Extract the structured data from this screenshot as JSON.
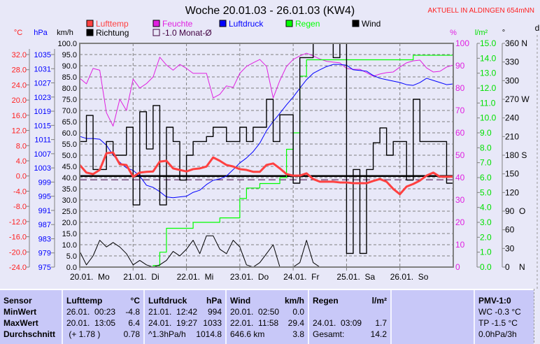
{
  "header": {
    "title": "Woche 20.01.03 - 26.01.03 (KW4)",
    "location": "AKTUELL IN ALDINGEN 654mNN"
  },
  "colors": {
    "lufttemp": "#ff4040",
    "feuchte": "#e020e0",
    "luftdruck": "#0000ff",
    "regen": "#00ff00",
    "wind": "#000000",
    "richtung": "#000000",
    "monat": "#400040",
    "grid": "#808080",
    "background": "#e8e8f8",
    "table": "#c8c8f8",
    "location": "#ff2020"
  },
  "chart_data": {
    "type": "line",
    "title": "Woche 20.01.03 - 26.01.03 (KW4)",
    "grid": true,
    "legend_placement": "top",
    "legend": [
      {
        "key": "lufttemp",
        "label": "Lufttemp"
      },
      {
        "key": "feuchte",
        "label": "Feuchte"
      },
      {
        "key": "luftdruck",
        "label": "Luftdruck"
      },
      {
        "key": "regen",
        "label": "Regen"
      },
      {
        "key": "wind",
        "label": "Wind"
      },
      {
        "key": "richtung",
        "label": "Richtung"
      },
      {
        "key": "monat",
        "label": "-1.0 Monat-Ø"
      }
    ],
    "axes": {
      "temp": {
        "unit": "°C",
        "ticks": [
          "32.0",
          "28.0",
          "24.0",
          "20.0",
          "16.0",
          "12.0",
          "8.0",
          "4.0",
          "0.0",
          "-4.0",
          "-8.0",
          "-12.0",
          "-16.0",
          "-20.0",
          "-24.0"
        ],
        "range": [
          -24,
          32
        ]
      },
      "pressure": {
        "unit": "hPa",
        "ticks": [
          "1035",
          "1031",
          "1027",
          "1023",
          "1019",
          "1015",
          "1011",
          "1007",
          "1003",
          "999",
          "995",
          "991",
          "987",
          "983",
          "979",
          "975"
        ],
        "range": [
          975,
          1035
        ]
      },
      "wind": {
        "unit": "km/h",
        "ticks": [
          "100.0",
          "95.0",
          "90.0",
          "85.0",
          "80.0",
          "75.0",
          "70.0",
          "65.0",
          "60.0",
          "55.0",
          "50.0",
          "45.0",
          "40.0",
          "35.0",
          "30.0",
          "25.0",
          "20.0",
          "15.0",
          "10.0",
          "5.0",
          "0.0"
        ],
        "range": [
          0,
          100
        ]
      },
      "humidity": {
        "unit": "%",
        "ticks": [
          "100",
          "90",
          "80",
          "70",
          "60",
          "50",
          "40",
          "30",
          "20",
          "10",
          "0"
        ],
        "range": [
          0,
          100
        ]
      },
      "rain": {
        "unit": "l/m²",
        "ticks": [
          "15.0",
          "14.0",
          "13.0",
          "12.0",
          "11.0",
          "10.0",
          "9.0",
          "8.0",
          "7.0",
          "6.0",
          "5.0",
          "4.0",
          "3.0",
          "2.0",
          "1.0",
          "0.0"
        ],
        "range": [
          0,
          15
        ]
      },
      "direction": {
        "unit": "°",
        "ticks": [
          "360 N",
          "330",
          "300",
          "270 W",
          "240",
          "210",
          "180 S",
          "150",
          "120",
          "90  O",
          "60",
          "30",
          "0    N"
        ],
        "range": [
          0,
          360
        ]
      },
      "extra": {
        "unit": "d"
      }
    },
    "days": [
      "20.01.  Mo",
      "21.01.  Di",
      "22.01.  Mi",
      "23.01.  Do",
      "24.01.  Fr",
      "25.01.  Sa",
      "26.01.  So"
    ],
    "monthly_avg_temp": -1.0,
    "x": [
      "20.01. 00:00",
      "20.01. 03:00",
      "20.01. 06:00",
      "20.01. 09:00",
      "20.01. 12:00",
      "20.01. 15:00",
      "20.01. 18:00",
      "20.01. 21:00",
      "21.01. 00:00",
      "21.01. 03:00",
      "21.01. 06:00",
      "21.01. 09:00",
      "21.01. 12:00",
      "21.01. 15:00",
      "21.01. 18:00",
      "21.01. 21:00",
      "22.01. 00:00",
      "22.01. 03:00",
      "22.01. 06:00",
      "22.01. 09:00",
      "22.01. 12:00",
      "22.01. 15:00",
      "22.01. 18:00",
      "22.01. 21:00",
      "23.01. 00:00",
      "23.01. 03:00",
      "23.01. 06:00",
      "23.01. 09:00",
      "23.01. 12:00",
      "23.01. 15:00",
      "23.01. 18:00",
      "23.01. 21:00",
      "24.01. 00:00",
      "24.01. 03:00",
      "24.01. 06:00",
      "24.01. 09:00",
      "24.01. 12:00",
      "24.01. 15:00",
      "24.01. 18:00",
      "24.01. 21:00",
      "25.01. 00:00",
      "25.01. 03:00",
      "25.01. 06:00",
      "25.01. 09:00",
      "25.01. 12:00",
      "25.01. 15:00",
      "25.01. 18:00",
      "25.01. 21:00",
      "26.01. 00:00",
      "26.01. 03:00",
      "26.01. 06:00",
      "26.01. 09:00",
      "26.01. 12:00",
      "26.01. 15:00",
      "26.01. 18:00",
      "26.01. 21:00",
      "27.01. 00:00"
    ],
    "series": [
      {
        "key": "feuchte",
        "name": "Feuchte",
        "axis": "humidity",
        "values": [
          84.4,
          81.9,
          88.8,
          88,
          69,
          63,
          75,
          70,
          84,
          80,
          82,
          85,
          93.8,
          90.3,
          88,
          90.6,
          88.8,
          86.6,
          86.6,
          86.6,
          75.6,
          77.2,
          81,
          80.3,
          86.6,
          89.7,
          91.3,
          92.8,
          89.7,
          75.6,
          83.4,
          89.7,
          92.8,
          94.4,
          95.6,
          94.4,
          93,
          92,
          91.6,
          91.3,
          88.8,
          88.4,
          88.4,
          86.9,
          85.3,
          86.3,
          86.9,
          87.2,
          89.4,
          91.3,
          92.2,
          92.5,
          89,
          87.2,
          87.5,
          89.4,
          90.3
        ]
      },
      {
        "key": "luftdruck",
        "name": "Luftdruck",
        "axis": "pressure",
        "values": [
          1011.9,
          1011.3,
          1011.3,
          1011.1,
          1009.4,
          1006.6,
          1004.6,
          1003,
          1002.3,
          1000.7,
          998.1,
          997.5,
          996.3,
          994.8,
          994.6,
          994.8,
          995,
          996.1,
          996.7,
          998.3,
          999.5,
          999.9,
          1000.7,
          1002.5,
          1004.4,
          1005.8,
          1007.6,
          1010,
          1013.5,
          1016.1,
          1018.4,
          1020.8,
          1023,
          1025.5,
          1027.9,
          1029.7,
          1030.7,
          1031.6,
          1032.2,
          1032.2,
          1032,
          1030.7,
          1030.5,
          1030.3,
          1029.1,
          1028.3,
          1027.9,
          1027.5,
          1027.1,
          1026.5,
          1026.3,
          1027.1,
          1028.3,
          1027.7,
          1027.1,
          1026.5,
          1026.7
        ]
      },
      {
        "key": "regen",
        "name": "Regen",
        "axis": "rain",
        "values": [
          0,
          0,
          0,
          0,
          0,
          0,
          0,
          0,
          0,
          0,
          0,
          0.1,
          1.0,
          2.6,
          2.6,
          2.6,
          2.6,
          3.0,
          3.0,
          3.0,
          3.0,
          3.3,
          3.3,
          3.3,
          4.6,
          5.3,
          5.3,
          5.6,
          5.6,
          5.6,
          6.0,
          7.9,
          9.0,
          12.8,
          13.9,
          13.9,
          13.9,
          13.9,
          13.9,
          13.9,
          13.9,
          13.9,
          13.9,
          13.9,
          13.9,
          13.9,
          13.9,
          13.9,
          13.9,
          13.9,
          14.2,
          14.2,
          14.2,
          14.2,
          14.2,
          14.2,
          14.2
        ]
      },
      {
        "key": "wind",
        "name": "Wind",
        "axis": "wind",
        "values": [
          7,
          1,
          5,
          12,
          9,
          11,
          9,
          6,
          1,
          3,
          1,
          0,
          1,
          3,
          7,
          5,
          8,
          12,
          6,
          14,
          14,
          8,
          6,
          12,
          9,
          1,
          0,
          2,
          6,
          10,
          0,
          0,
          0,
          2,
          12,
          2,
          0,
          0,
          0,
          0,
          0,
          0,
          0,
          0,
          0,
          0,
          0,
          0,
          0,
          0,
          0,
          0,
          0,
          0,
          0,
          0,
          0
        ]
      },
      {
        "key": "richtung",
        "name": "Richtung",
        "axis": "direction",
        "values": [
          202,
          244,
          157,
          157,
          202,
          180,
          180,
          225,
          100,
          250,
          190,
          260,
          100,
          225,
          202,
          140,
          180,
          202,
          202,
          210,
          225,
          225,
          202,
          202,
          225,
          202,
          225,
          225,
          270,
          202,
          245,
          245,
          135,
          337,
          337,
          360,
          360,
          360,
          337,
          360,
          22,
          157,
          22,
          157,
          200,
          224,
          180,
          202,
          202,
          140,
          270,
          202,
          202,
          202,
          202,
          135,
          135
        ]
      },
      {
        "key": "lufttemp",
        "name": "Lufttemp",
        "axis": "temp",
        "values": [
          2.9,
          0.9,
          0.5,
          1.6,
          6.0,
          6.2,
          3.1,
          2.9,
          -0.2,
          0.9,
          1.1,
          1.2,
          3.8,
          4.0,
          2.0,
          1.6,
          1.2,
          1.8,
          2.0,
          2.5,
          4.9,
          4.0,
          2.9,
          2.5,
          1.8,
          1.6,
          1.1,
          1.1,
          2.9,
          3.3,
          2.0,
          0.5,
          0.1,
          0.1,
          0.7,
          -0.8,
          -1.5,
          -1.5,
          -1.5,
          -1.7,
          -1.7,
          -1.9,
          -1.9,
          -1.9,
          -1.3,
          -0.8,
          -1.5,
          -3.4,
          -4.8,
          -2.8,
          -2.1,
          -1.2,
          0.1,
          0.9,
          -0.2,
          -0.2,
          -0.2
        ]
      }
    ]
  },
  "table": {
    "row_labels": {
      "sensor": "Sensor",
      "min": "MinWert",
      "max": "MaxWert",
      "avg": "Durchschnitt"
    },
    "lufttemp": {
      "title": "Lufttemp",
      "unit": "°C",
      "min": {
        "time": "26.01.  00:23",
        "value": "-4.8"
      },
      "max": {
        "time": "20.01.  13:05",
        "value": "6.4"
      },
      "avg": {
        "time": " (+ 1.78 )",
        "value": "0.78"
      }
    },
    "luftdruck": {
      "title": "Luftdruck",
      "unit": "hPa",
      "min": {
        "time": "21.01.  12:42",
        "value": "994"
      },
      "max": {
        "time": "24.01.  19:27",
        "value": "1033"
      },
      "avg": {
        "time": "^1.3hPa/h",
        "value": "1014.8"
      }
    },
    "wind": {
      "title": "Wind",
      "unit": "km/h",
      "min": {
        "time": "20.01.  02:50",
        "value": "0.0"
      },
      "max": {
        "time": "22.01.  11:58",
        "value": "29.4"
      },
      "avg": {
        "time": "646.6 km",
        "value": "3.8"
      }
    },
    "regen": {
      "title": "Regen",
      "unit": "l/m²",
      "max": {
        "time": "24.01.  03:09",
        "value": "1.7"
      },
      "avg": {
        "time": "Gesamt:",
        "value": "14.2"
      }
    },
    "pmv": {
      "title": "PMV-1:0",
      "wc": "WC -0.3 °C",
      "tp": "TP -1.5 °C",
      "trend": "0.0hPa/3h"
    }
  }
}
